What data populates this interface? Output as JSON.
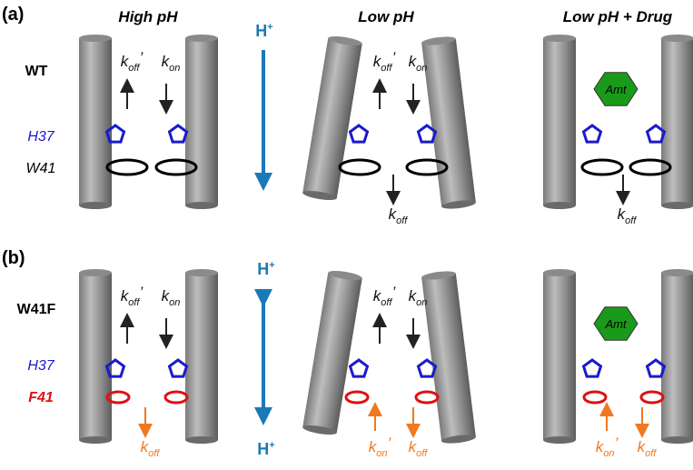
{
  "panels": [
    {
      "label": "(a)",
      "mutant": "WT",
      "residue_top": "H37",
      "residue_bottom": "W41"
    },
    {
      "label": "(b)",
      "mutant": "W41F",
      "residue_top": "H37",
      "residue_bottom": "F41"
    }
  ],
  "columns": [
    "High pH",
    "Low pH",
    "Low pH + Drug"
  ],
  "drug": "Amt",
  "proton": {
    "base": "H",
    "sup": "+"
  },
  "rates": {
    "koff_prime": {
      "base": "k",
      "sub": "off",
      "mark": "’"
    },
    "kon": {
      "base": "k",
      "sub": "on"
    },
    "koff": {
      "base": "k",
      "sub": "off"
    },
    "kon_prime": {
      "base": "k",
      "sub": "on",
      "mark": "’"
    }
  }
}
